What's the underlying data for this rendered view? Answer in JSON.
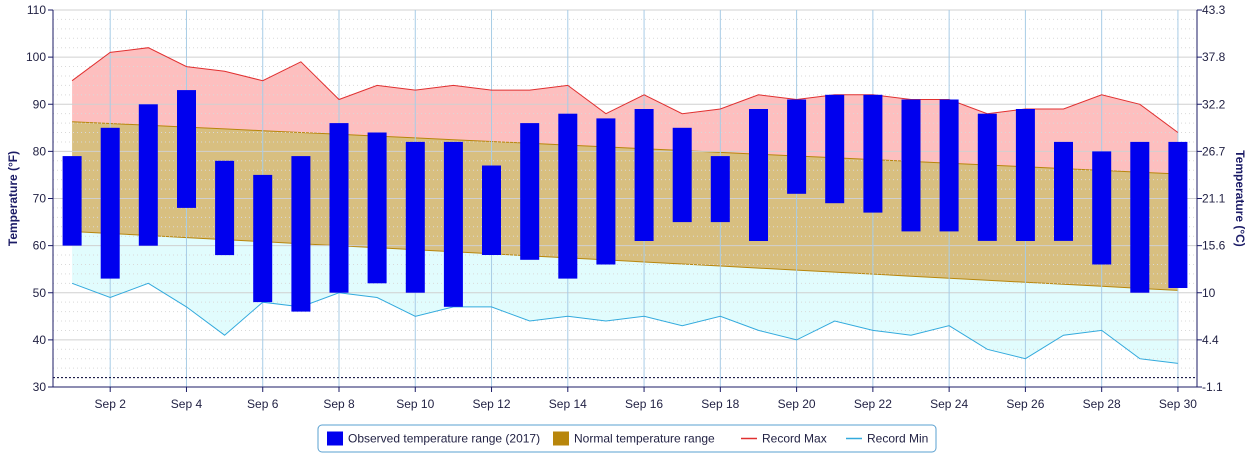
{
  "chart_data": {
    "type": "bar",
    "x": [
      1,
      2,
      3,
      4,
      5,
      6,
      7,
      8,
      9,
      10,
      11,
      12,
      13,
      14,
      15,
      16,
      17,
      18,
      19,
      20,
      21,
      22,
      23,
      24,
      25,
      26,
      27,
      28,
      29,
      30
    ],
    "x_tick_labels": [
      "Sep 2",
      "Sep 4",
      "Sep 6",
      "Sep 8",
      "Sep 10",
      "Sep 12",
      "Sep 14",
      "Sep 16",
      "Sep 18",
      "Sep 20",
      "Sep 22",
      "Sep 24",
      "Sep 26",
      "Sep 28",
      "Sep 30"
    ],
    "x_tick_values": [
      2,
      4,
      6,
      8,
      10,
      12,
      14,
      16,
      18,
      20,
      22,
      24,
      26,
      28,
      30
    ],
    "ylabel_left": "Temperature (°F)",
    "ylabel_right": "Temperature (°C)",
    "ylim": [
      30,
      110
    ],
    "y_ticks_left": [
      30,
      40,
      50,
      60,
      70,
      80,
      90,
      100,
      110
    ],
    "y_ticks_right": [
      "-1.1",
      "4.4",
      "10",
      "15.6",
      "21.1",
      "26.7",
      "32.2",
      "37.8",
      "43.3"
    ],
    "series": [
      {
        "name": "Observed temperature range (2017)",
        "color": "#0000ee",
        "low": [
          60,
          53,
          60,
          68,
          58,
          48,
          46,
          50,
          52,
          50,
          47,
          58,
          57,
          53,
          56,
          61,
          65,
          65,
          61,
          71,
          69,
          67,
          63,
          63,
          61,
          61,
          61,
          56,
          50,
          51
        ],
        "high": [
          79,
          85,
          90,
          93,
          78,
          75,
          79,
          86,
          84,
          82,
          82,
          77,
          86,
          88,
          87,
          89,
          85,
          79,
          89,
          91,
          92,
          92,
          91,
          91,
          88,
          89,
          82,
          80,
          82,
          82
        ]
      },
      {
        "name": "Normal temperature range",
        "color": "#b8860b",
        "low_start": 63,
        "low_end": 50.5,
        "high_start": 86.3,
        "high_end": 75.2
      },
      {
        "name": "Record Max",
        "color": "#e03030",
        "values": [
          95,
          101,
          102,
          98,
          97,
          95,
          99,
          91,
          94,
          93,
          94,
          93,
          93,
          94,
          88,
          92,
          88,
          89,
          92,
          91,
          92,
          92,
          91,
          91,
          88,
          89,
          89,
          92,
          90,
          84
        ]
      },
      {
        "name": "Record Min",
        "color": "#33aadd",
        "values": [
          52,
          49,
          52,
          47,
          41,
          48,
          47,
          50,
          49,
          45,
          47,
          47,
          44,
          45,
          44,
          45,
          43,
          45,
          42,
          40,
          44,
          42,
          41,
          43,
          38,
          36,
          41,
          42,
          36,
          35
        ]
      }
    ],
    "reference_line": 32,
    "grid": true,
    "legend_position": "bottom-center",
    "colors": {
      "record_band_fill": "#fdbfbf",
      "normal_band_fill": "#d8bf80",
      "min_band_fill": "#e1fcfd",
      "grid_vertical": "#a8cce6",
      "grid_horizontal": "#dddddd"
    }
  }
}
